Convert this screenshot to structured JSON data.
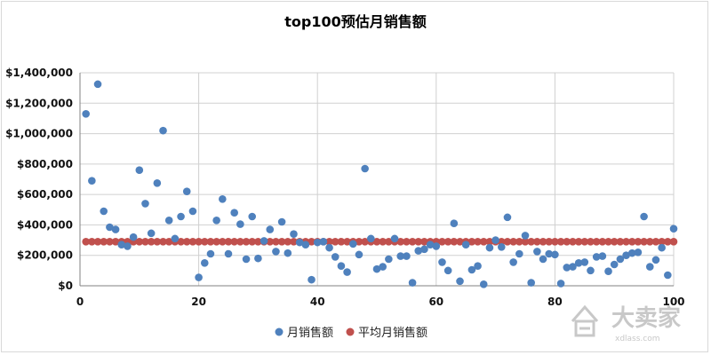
{
  "chart_data": {
    "type": "scatter",
    "title": "top100预估月销售额",
    "xlabel": "",
    "ylabel": "",
    "xlim": [
      0,
      100
    ],
    "ylim": [
      0,
      1400000
    ],
    "x_ticks": [
      "0",
      "20",
      "40",
      "60",
      "80",
      "100"
    ],
    "y_ticks": [
      "$0",
      "$200,000",
      "$400,000",
      "$600,000",
      "$800,000",
      "$1,000,000",
      "$1,200,000",
      "$1,400,000"
    ],
    "grid": true,
    "legend_position": "bottom",
    "series": [
      {
        "name": "月销售额",
        "color": "#4f81bd",
        "x": [
          1,
          2,
          3,
          4,
          5,
          6,
          7,
          8,
          9,
          10,
          11,
          12,
          13,
          14,
          15,
          16,
          17,
          18,
          19,
          20,
          21,
          22,
          23,
          24,
          25,
          26,
          27,
          28,
          29,
          30,
          31,
          32,
          33,
          34,
          35,
          36,
          37,
          38,
          39,
          40,
          41,
          42,
          43,
          44,
          45,
          46,
          47,
          48,
          49,
          50,
          51,
          52,
          53,
          54,
          55,
          56,
          57,
          58,
          59,
          60,
          61,
          62,
          63,
          64,
          65,
          66,
          67,
          68,
          69,
          70,
          71,
          72,
          73,
          74,
          75,
          76,
          77,
          78,
          79,
          80,
          81,
          82,
          83,
          84,
          85,
          86,
          87,
          88,
          89,
          90,
          91,
          92,
          93,
          94,
          95,
          96,
          97,
          98,
          99,
          100
        ],
        "y": [
          1130000,
          690000,
          1325000,
          490000,
          385000,
          370000,
          270000,
          260000,
          320000,
          760000,
          540000,
          345000,
          675000,
          1020000,
          430000,
          310000,
          455000,
          620000,
          490000,
          55000,
          150000,
          210000,
          430000,
          570000,
          210000,
          480000,
          405000,
          175000,
          455000,
          180000,
          295000,
          370000,
          225000,
          420000,
          215000,
          340000,
          285000,
          270000,
          40000,
          285000,
          290000,
          250000,
          190000,
          130000,
          90000,
          275000,
          205000,
          770000,
          310000,
          110000,
          125000,
          175000,
          310000,
          195000,
          195000,
          20000,
          230000,
          240000,
          270000,
          260000,
          155000,
          100000,
          410000,
          30000,
          270000,
          105000,
          130000,
          10000,
          250000,
          300000,
          255000,
          450000,
          155000,
          210000,
          330000,
          20000,
          225000,
          175000,
          210000,
          205000,
          15000,
          120000,
          125000,
          150000,
          155000,
          100000,
          190000,
          195000,
          95000,
          140000,
          175000,
          200000,
          215000,
          220000,
          455000,
          125000,
          170000,
          250000,
          70000,
          375000
        ]
      },
      {
        "name": "平均月销售额",
        "color": "#c0504d",
        "x": [
          1,
          2,
          3,
          4,
          5,
          6,
          7,
          8,
          9,
          10,
          11,
          12,
          13,
          14,
          15,
          16,
          17,
          18,
          19,
          20,
          21,
          22,
          23,
          24,
          25,
          26,
          27,
          28,
          29,
          30,
          31,
          32,
          33,
          34,
          35,
          36,
          37,
          38,
          39,
          40,
          41,
          42,
          43,
          44,
          45,
          46,
          47,
          48,
          49,
          50,
          51,
          52,
          53,
          54,
          55,
          56,
          57,
          58,
          59,
          60,
          61,
          62,
          63,
          64,
          65,
          66,
          67,
          68,
          69,
          70,
          71,
          72,
          73,
          74,
          75,
          76,
          77,
          78,
          79,
          80,
          81,
          82,
          83,
          84,
          85,
          86,
          87,
          88,
          89,
          90,
          91,
          92,
          93,
          94,
          95,
          96,
          97,
          98,
          99,
          100
        ],
        "y_constant": 290000
      }
    ]
  },
  "watermark": {
    "text": "大卖家",
    "sub": "xdlass.com"
  }
}
